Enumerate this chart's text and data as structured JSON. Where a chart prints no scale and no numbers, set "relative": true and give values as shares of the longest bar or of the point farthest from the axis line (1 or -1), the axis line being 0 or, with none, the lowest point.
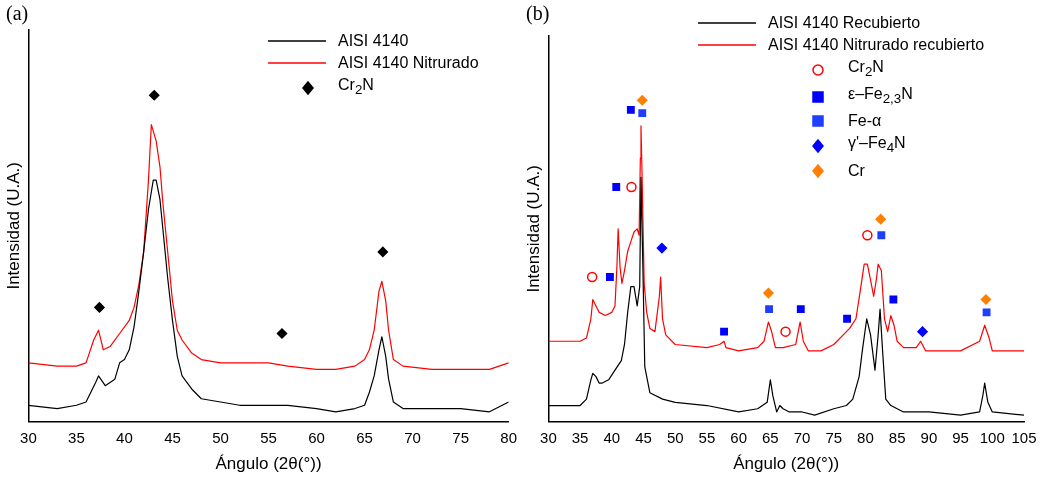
{
  "chart_data": [
    {
      "type": "line",
      "title": "(a)",
      "xlabel": "Ángulo (2θ(°))",
      "ylabel": "Intensidad (U.A.)",
      "relative": true,
      "xlim": [
        30,
        80
      ],
      "xticks": [
        30,
        35,
        40,
        45,
        50,
        55,
        60,
        65,
        70,
        75,
        80
      ],
      "tick_labels": "x",
      "grid": false,
      "legend": "top right",
      "series": [
        {
          "name": "AISI 4140",
          "color": "#000000",
          "marker": "none",
          "x": [
            30,
            33,
            35,
            36,
            37,
            37.3,
            38,
            39,
            39.5,
            40,
            40.5,
            41,
            41.5,
            42,
            42.5,
            43,
            43.3,
            43.7,
            44,
            44.5,
            45,
            45.5,
            46,
            47,
            48,
            50,
            52,
            55,
            57,
            60,
            62,
            64,
            65,
            65.5,
            66,
            66.5,
            66.8,
            67.2,
            67.5,
            68,
            69,
            72,
            75,
            78,
            80
          ],
          "values": [
            0.05,
            0.04,
            0.05,
            0.06,
            0.12,
            0.14,
            0.11,
            0.13,
            0.18,
            0.19,
            0.22,
            0.29,
            0.4,
            0.52,
            0.65,
            0.74,
            0.74,
            0.68,
            0.59,
            0.44,
            0.31,
            0.2,
            0.14,
            0.1,
            0.07,
            0.06,
            0.05,
            0.05,
            0.05,
            0.04,
            0.03,
            0.04,
            0.05,
            0.09,
            0.14,
            0.22,
            0.26,
            0.2,
            0.13,
            0.06,
            0.04,
            0.04,
            0.04,
            0.03,
            0.06
          ]
        },
        {
          "name": "AISI 4140 Nitrurado",
          "color": "#ff0000",
          "marker": "none",
          "x": [
            30,
            33,
            35,
            36,
            36.8,
            37.3,
            37.8,
            38.5,
            39.5,
            40.5,
            41,
            41.5,
            42,
            42.5,
            42.8,
            43,
            43.3,
            43.7,
            44,
            44.5,
            45,
            45.5,
            46,
            47,
            48,
            50,
            52,
            55,
            57,
            60,
            62,
            64,
            65,
            65.5,
            66,
            66.5,
            66.8,
            67.2,
            67.5,
            68,
            69,
            72,
            75,
            78,
            80
          ],
          "values": [
            0.18,
            0.17,
            0.17,
            0.18,
            0.25,
            0.28,
            0.22,
            0.23,
            0.27,
            0.31,
            0.35,
            0.42,
            0.52,
            0.74,
            0.91,
            0.89,
            0.86,
            0.78,
            0.67,
            0.52,
            0.37,
            0.28,
            0.25,
            0.21,
            0.19,
            0.18,
            0.18,
            0.18,
            0.17,
            0.16,
            0.16,
            0.17,
            0.19,
            0.22,
            0.28,
            0.4,
            0.43,
            0.37,
            0.28,
            0.19,
            0.17,
            0.16,
            0.16,
            0.16,
            0.18
          ]
        },
        {
          "name": "Cr$_{2}$N",
          "type": "scatter",
          "color": "#000000",
          "marker": "diamond",
          "x": [
            37.4,
            43.1,
            56.4,
            66.9
          ],
          "values": [
            0.35,
            1,
            0.27,
            0.52
          ]
        }
      ]
    },
    {
      "type": "line",
      "title": "(b)",
      "xlabel": "Ángulo (2θ(°))",
      "ylabel": "Intensidad (U.A.)",
      "relative": true,
      "xlim": [
        30,
        105
      ],
      "xticks": [
        30,
        35,
        40,
        45,
        50,
        55,
        60,
        65,
        70,
        75,
        80,
        85,
        90,
        95,
        100,
        105
      ],
      "tick_labels": "x",
      "grid": false,
      "legend": "top right",
      "series": [
        {
          "name": "AISI 4140 Recubierto",
          "color": "#000000",
          "marker": "none",
          "x": [
            30,
            32,
            35,
            36,
            36.7,
            37,
            37.5,
            38,
            38.5,
            39.5,
            40.5,
            41.5,
            42,
            42.5,
            43,
            43.5,
            44,
            44.4,
            44.6,
            44.9,
            45.2,
            46,
            48,
            50,
            55,
            60,
            63,
            64.5,
            65,
            65.4,
            66,
            66.5,
            67,
            68,
            70,
            72,
            75,
            77,
            78,
            79,
            79.5,
            80.2,
            80.8,
            81.5,
            82,
            82.3,
            82.7,
            83.2,
            84,
            86,
            90,
            95,
            98,
            98.5,
            98.8,
            99.3,
            100,
            105
          ],
          "values": [
            0.05,
            0.05,
            0.05,
            0.07,
            0.13,
            0.15,
            0.14,
            0.12,
            0.12,
            0.13,
            0.16,
            0.19,
            0.24,
            0.34,
            0.42,
            0.42,
            0.36,
            0.42,
            0.76,
            0.48,
            0.17,
            0.09,
            0.07,
            0.06,
            0.05,
            0.03,
            0.04,
            0.06,
            0.13,
            0.08,
            0.03,
            0.05,
            0.04,
            0.03,
            0.03,
            0.02,
            0.04,
            0.05,
            0.07,
            0.14,
            0.22,
            0.32,
            0.27,
            0.16,
            0.27,
            0.35,
            0.22,
            0.07,
            0.05,
            0.03,
            0.03,
            0.02,
            0.03,
            0.08,
            0.12,
            0.06,
            0.03,
            0.02
          ]
        },
        {
          "name": "AISI 4140 Nitrurado recubierto",
          "color": "#ff0000",
          "marker": "none",
          "x": [
            30,
            33,
            35,
            36,
            36.7,
            37,
            37.5,
            38,
            39,
            40,
            40.5,
            40.8,
            41,
            41.3,
            41.6,
            42,
            42.5,
            43,
            43.5,
            44,
            44.3,
            44.5,
            44.6,
            44.8,
            45.1,
            45.5,
            46,
            46.8,
            47.5,
            47.7,
            48,
            48.5,
            50,
            55,
            57,
            57.7,
            58,
            60,
            63,
            64,
            64.7,
            65.2,
            65.8,
            67,
            69,
            69.7,
            70.2,
            71,
            73,
            75,
            76.5,
            77.5,
            78.5,
            79.2,
            79.8,
            80.3,
            80.8,
            81.3,
            81.7,
            82,
            82.5,
            83,
            83.5,
            84,
            84.5,
            85,
            86,
            88,
            88.7,
            89.5,
            92,
            95,
            98,
            98.8,
            99.5,
            100,
            105
          ],
          "values": [
            0.25,
            0.25,
            0.25,
            0.26,
            0.32,
            0.38,
            0.36,
            0.34,
            0.33,
            0.34,
            0.36,
            0.48,
            0.6,
            0.48,
            0.43,
            0.47,
            0.53,
            0.56,
            0.59,
            0.6,
            0.58,
            0.82,
            0.92,
            0.74,
            0.43,
            0.34,
            0.29,
            0.28,
            0.39,
            0.45,
            0.32,
            0.27,
            0.24,
            0.23,
            0.24,
            0.25,
            0.23,
            0.22,
            0.23,
            0.25,
            0.31,
            0.28,
            0.23,
            0.23,
            0.24,
            0.31,
            0.25,
            0.22,
            0.22,
            0.24,
            0.27,
            0.29,
            0.32,
            0.41,
            0.49,
            0.49,
            0.44,
            0.39,
            0.44,
            0.49,
            0.47,
            0.32,
            0.28,
            0.33,
            0.3,
            0.25,
            0.23,
            0.23,
            0.25,
            0.22,
            0.22,
            0.22,
            0.25,
            0.3,
            0.26,
            0.22,
            0.22
          ]
        },
        {
          "name": "Cr$_{2}$N",
          "type": "scatter",
          "color": "#ff0000",
          "marker": "circle",
          "x": [
            36.9,
            43.1,
            67.4,
            80.3
          ],
          "values": [
            0.45,
            0.73,
            0.28,
            0.58
          ]
        },
        {
          "name": "ε–Fe$_{2,3}$N",
          "type": "scatter",
          "color": "#0000ff",
          "marker": "square",
          "x": [
            39.7,
            40.7,
            43.0,
            57.7,
            69.8,
            77.1,
            84.4
          ],
          "values": [
            0.45,
            0.73,
            0.97,
            0.28,
            0.35,
            0.32,
            0.38
          ]
        },
        {
          "name": "Fe-α",
          "type": "scatter",
          "color": "#1f3fff",
          "marker": "square",
          "x": [
            44.8,
            64.8,
            82.5,
            99.1
          ],
          "values": [
            0.96,
            0.35,
            0.58,
            0.34
          ]
        },
        {
          "name": "γ'–Fe$_{4}$N",
          "type": "scatter",
          "color": "#0000ff",
          "marker": "diamond",
          "x": [
            47.9,
            89.0
          ],
          "values": [
            0.54,
            0.28
          ]
        },
        {
          "name": "Cr",
          "type": "scatter",
          "color": "#ff8000",
          "marker": "diamond",
          "x": [
            44.8,
            64.7,
            82.4,
            99.0
          ],
          "values": [
            1,
            0.4,
            0.63,
            0.38
          ]
        }
      ]
    }
  ]
}
